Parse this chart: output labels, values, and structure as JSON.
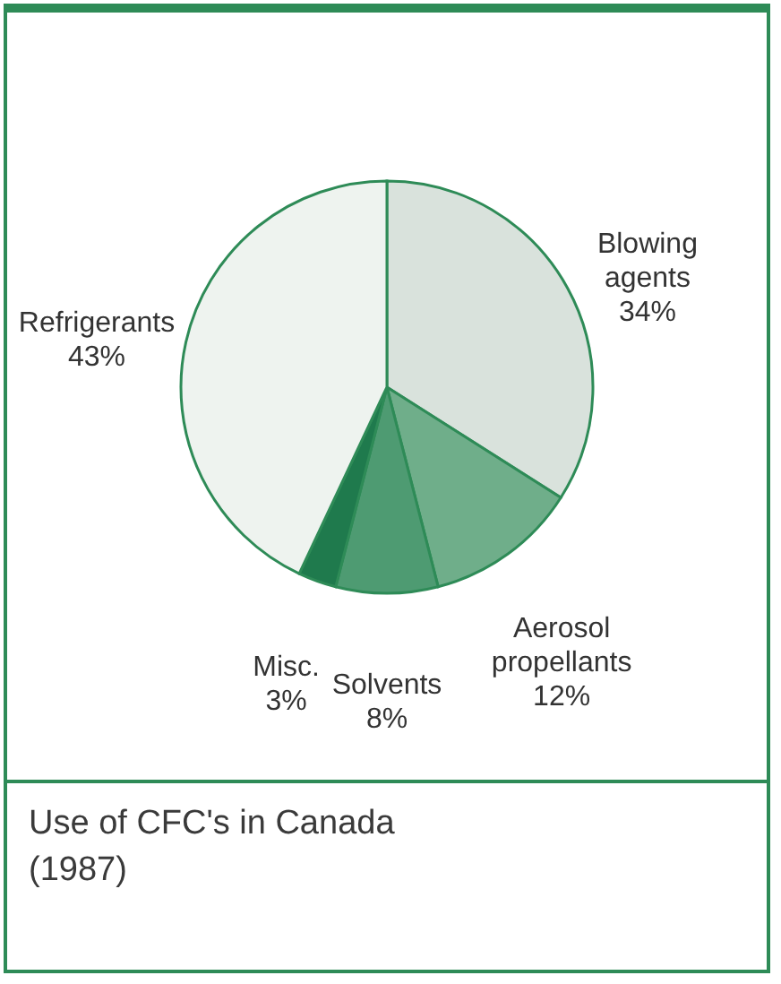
{
  "chart_data": {
    "type": "pie",
    "title": "Use of CFC's in Canada (1987)",
    "categories": [
      "Blowing agents",
      "Aerosol propellants",
      "Solvents",
      "Misc.",
      "Refrigerants"
    ],
    "values": [
      34,
      12,
      8,
      3,
      43
    ],
    "value_labels": [
      "34%",
      "12%",
      "8%",
      "3%",
      "43%"
    ],
    "colors": [
      "#d9e2dc",
      "#6fae8a",
      "#4e9b72",
      "#1f7a4d",
      "#eef3ef"
    ]
  }
}
